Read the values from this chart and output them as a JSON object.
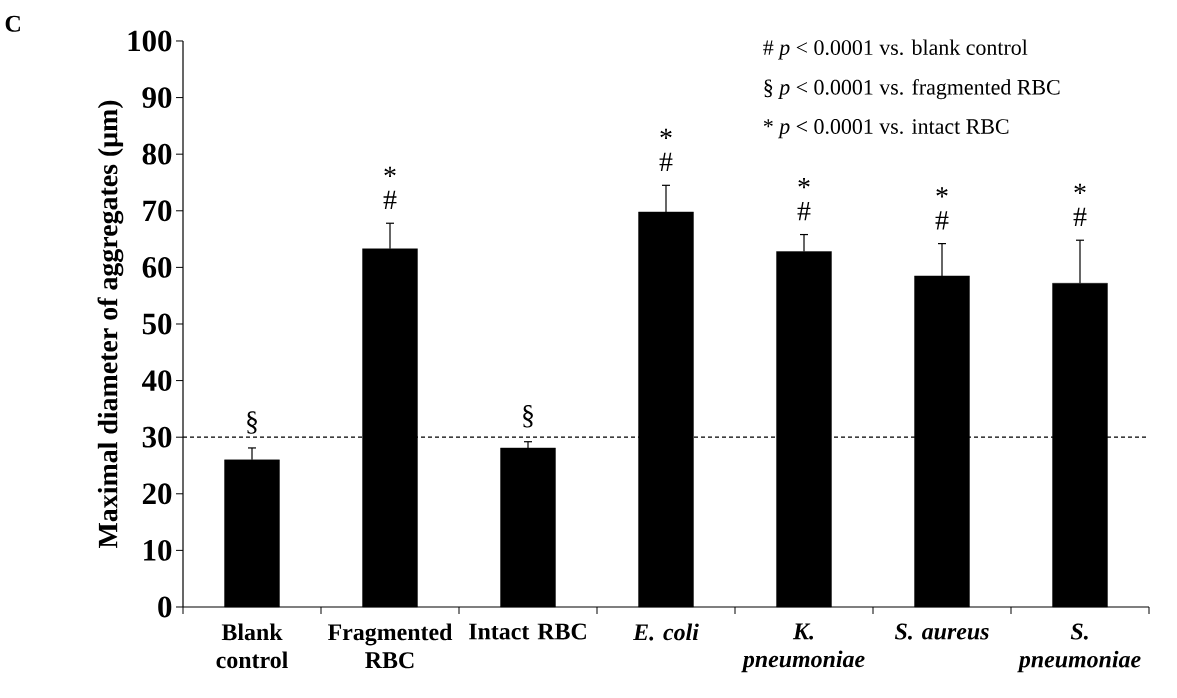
{
  "chart_data": {
    "type": "bar",
    "ylabel": "Maximal diameter of aggregates (μm)",
    "categories": [
      "Blank control",
      "Fragmented RBC",
      "Intact RBC",
      "*E. coli*",
      "*K. pneumoniae*",
      "*S. aureus*",
      "*S. pneumoniae*"
    ],
    "values": [
      26.0,
      63.3,
      28.1,
      69.8,
      62.8,
      58.5,
      57.2
    ],
    "errors": [
      2.1,
      4.5,
      1.1,
      4.7,
      3.0,
      5.7,
      7.6
    ],
    "color": "#000000",
    "ylim": [
      0,
      100
    ],
    "yticks": [
      0,
      10,
      20,
      30,
      40,
      50,
      60,
      70,
      80,
      90,
      100
    ],
    "grid": false,
    "ref_lines": [
      {
        "axis": "y",
        "value": 30,
        "color": "#000000",
        "line_style": "dashed"
      }
    ],
    "annotations": [
      "C",
      "# *p* < 0.0001 vs. blank control",
      "§ *p* < 0.0001 vs. fragmented RBC",
      "* *p* < 0.0001 vs. intact RBC",
      "§",
      "#",
      "*",
      "§",
      "#",
      "*",
      "#",
      "*",
      "#",
      "*",
      "#",
      "*"
    ]
  }
}
